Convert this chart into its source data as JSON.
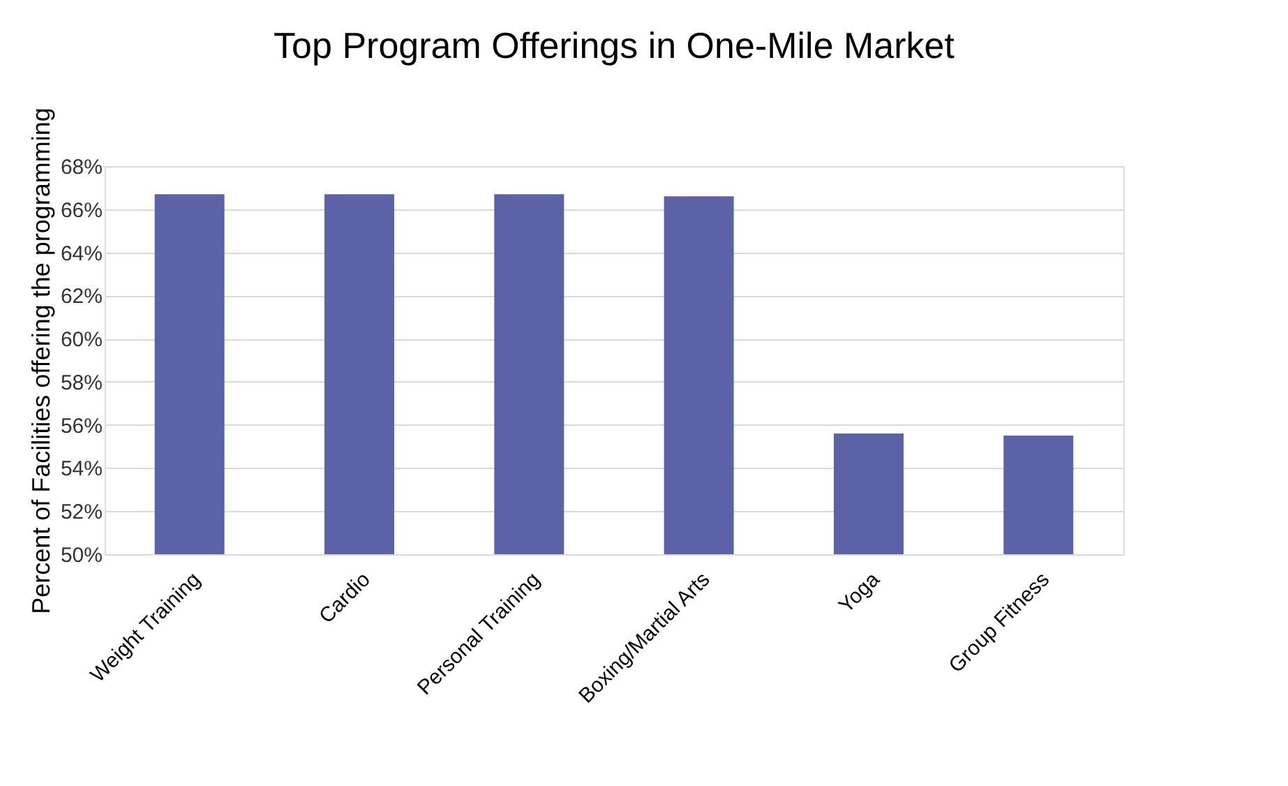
{
  "chart_data": {
    "type": "bar",
    "title": "Top Program Offerings in One-Mile Market",
    "ylabel": "Percent of Facilities offering the programming",
    "categories": [
      "Weight Training",
      "Cardio",
      "Personal Training",
      "Boxing/Martial Arts",
      "Yoga",
      "Group Fitness"
    ],
    "values": [
      66.7,
      66.7,
      66.7,
      66.6,
      55.6,
      55.5
    ],
    "color": "#5b62a8",
    "ylim": [
      50,
      68
    ],
    "yticks": [
      {
        "value": 50,
        "label": "50%"
      },
      {
        "value": 52,
        "label": "52%"
      },
      {
        "value": 54,
        "label": "54%"
      },
      {
        "value": 56,
        "label": "56%"
      },
      {
        "value": 58,
        "label": "58%"
      },
      {
        "value": 60,
        "label": "60%"
      },
      {
        "value": 62,
        "label": "62%"
      },
      {
        "value": 64,
        "label": "64%"
      },
      {
        "value": 66,
        "label": "66%"
      },
      {
        "value": 68,
        "label": "68%"
      }
    ],
    "grid": "y"
  }
}
